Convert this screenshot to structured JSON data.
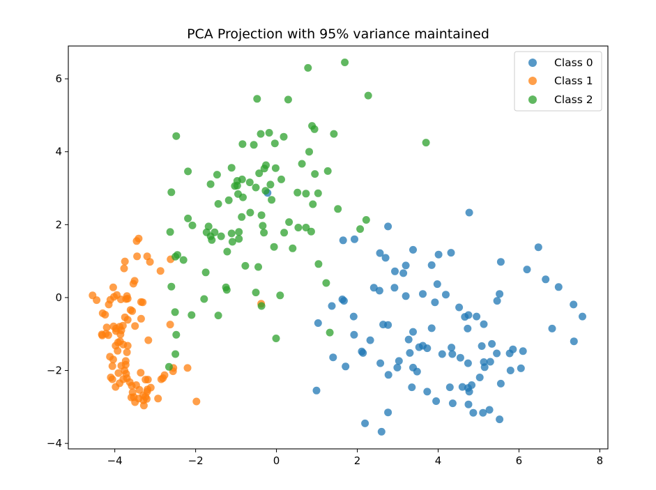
{
  "chart_data": {
    "type": "scatter",
    "title": "PCA Projection with 95% variance maintained",
    "xlabel": "",
    "ylabel": "",
    "xlim": [
      -5.15,
      8.2
    ],
    "ylim": [
      -4.15,
      6.9
    ],
    "xticks": [
      -4,
      -2,
      0,
      2,
      4,
      6,
      8
    ],
    "yticks": [
      -4,
      -2,
      0,
      2,
      4,
      6
    ],
    "xtick_labels": [
      "−4",
      "−2",
      "0",
      "2",
      "4",
      "6",
      "8"
    ],
    "ytick_labels": [
      "−4",
      "−2",
      "0",
      "2",
      "4",
      "6"
    ],
    "grid": false,
    "legend_position": "top-right",
    "marker_alpha": 0.75,
    "series": [
      {
        "name": "Class 0",
        "color": "#1f77b4",
        "points": [
          [
            -0.22,
            2.87
          ],
          [
            1.65,
            1.57
          ],
          [
            1.93,
            1.6
          ],
          [
            2.76,
            1.95
          ],
          [
            2.56,
            1.22
          ],
          [
            2.7,
            1.09
          ],
          [
            3.14,
            0.67
          ],
          [
            2.93,
            0.72
          ],
          [
            3.2,
            0.88
          ],
          [
            3.38,
            1.31
          ],
          [
            3.84,
            0.89
          ],
          [
            4.01,
            1.18
          ],
          [
            4.32,
            1.23
          ],
          [
            4.77,
            2.33
          ],
          [
            5.55,
            0.98
          ],
          [
            6.48,
            1.38
          ],
          [
            6.2,
            0.77
          ],
          [
            6.66,
            0.5
          ],
          [
            6.98,
            0.29
          ],
          [
            7.35,
            -0.19
          ],
          [
            7.57,
            -0.52
          ],
          [
            2.41,
            0.27
          ],
          [
            2.55,
            0.19
          ],
          [
            2.92,
            0.27
          ],
          [
            3.2,
            0.04
          ],
          [
            3.62,
            0.1
          ],
          [
            3.98,
            0.37
          ],
          [
            4.19,
            0.08
          ],
          [
            4.52,
            -0.27
          ],
          [
            4.66,
            -0.53
          ],
          [
            4.75,
            -0.48
          ],
          [
            4.95,
            -0.52
          ],
          [
            5.13,
            -0.73
          ],
          [
            3.92,
            -0.13
          ],
          [
            1.37,
            -0.23
          ],
          [
            1.63,
            -0.05
          ],
          [
            1.67,
            -0.09
          ],
          [
            1.91,
            -0.52
          ],
          [
            2.64,
            -0.74
          ],
          [
            2.76,
            -0.75
          ],
          [
            3.38,
            -0.94
          ],
          [
            3.84,
            -0.84
          ],
          [
            4.73,
            -0.85
          ],
          [
            5.46,
            -0.09
          ],
          [
            5.52,
            0.1
          ],
          [
            6.82,
            -0.85
          ],
          [
            7.36,
            -1.2
          ],
          [
            1.03,
            -0.7
          ],
          [
            1.4,
            -1.64
          ],
          [
            1.71,
            -1.89
          ],
          [
            1.92,
            -1.02
          ],
          [
            2.11,
            -1.48
          ],
          [
            2.14,
            -1.52
          ],
          [
            2.32,
            -1.17
          ],
          [
            2.57,
            -1.8
          ],
          [
            2.77,
            -2.12
          ],
          [
            2.99,
            -1.92
          ],
          [
            3.03,
            -1.74
          ],
          [
            3.27,
            -1.15
          ],
          [
            3.3,
            -1.52
          ],
          [
            3.53,
            -1.36
          ],
          [
            3.62,
            -1.32
          ],
          [
            3.73,
            -1.39
          ],
          [
            4.1,
            -1.55
          ],
          [
            4.33,
            -1.37
          ],
          [
            4.35,
            -1.55
          ],
          [
            4.55,
            -1.65
          ],
          [
            4.74,
            -1.8
          ],
          [
            5.13,
            -1.77
          ],
          [
            5.15,
            -1.91
          ],
          [
            5.29,
            -1.76
          ],
          [
            5.08,
            -1.33
          ],
          [
            5.33,
            -1.27
          ],
          [
            5.45,
            -1.53
          ],
          [
            5.77,
            -1.53
          ],
          [
            5.85,
            -1.42
          ],
          [
            6.1,
            -1.47
          ],
          [
            3.38,
            -1.92
          ],
          [
            3.48,
            -2.03
          ],
          [
            3.35,
            -2.46
          ],
          [
            3.73,
            -2.58
          ],
          [
            3.95,
            -2.84
          ],
          [
            4.29,
            -2.46
          ],
          [
            4.36,
            -2.9
          ],
          [
            4.6,
            -2.45
          ],
          [
            4.74,
            -2.48
          ],
          [
            4.77,
            -2.58
          ],
          [
            4.83,
            -2.4
          ],
          [
            4.75,
            -2.93
          ],
          [
            4.87,
            -3.16
          ],
          [
            5.03,
            -2.19
          ],
          [
            5.11,
            -3.16
          ],
          [
            5.27,
            -3.08
          ],
          [
            5.52,
            -3.34
          ],
          [
            5.55,
            -2.36
          ],
          [
            5.79,
            -2.0
          ],
          [
            6.05,
            -1.94
          ],
          [
            0.99,
            -2.55
          ],
          [
            2.19,
            -3.45
          ],
          [
            2.6,
            -3.68
          ],
          [
            2.76,
            -3.15
          ]
        ]
      },
      {
        "name": "Class 1",
        "color": "#ff7f0e",
        "points": [
          [
            -3.46,
            1.55
          ],
          [
            -3.41,
            1.62
          ],
          [
            -3.2,
            1.13
          ],
          [
            -3.13,
            0.98
          ],
          [
            -3.45,
            1.13
          ],
          [
            -3.75,
            0.99
          ],
          [
            -3.77,
            0.8
          ],
          [
            -3.54,
            0.38
          ],
          [
            -3.51,
            0.46
          ],
          [
            -2.87,
            0.73
          ],
          [
            -2.62,
            1.05
          ],
          [
            -4.04,
            0.28
          ],
          [
            -3.95,
            0.07
          ],
          [
            -4.02,
            0.02
          ],
          [
            -3.85,
            -0.05
          ],
          [
            -3.7,
            0.04
          ],
          [
            -3.72,
            -0.04
          ],
          [
            -4.11,
            -0.06
          ],
          [
            -4.15,
            -0.19
          ],
          [
            -4.55,
            0.06
          ],
          [
            -4.45,
            -0.07
          ],
          [
            -4.3,
            -0.43
          ],
          [
            -4.24,
            -0.47
          ],
          [
            -3.68,
            -0.03
          ],
          [
            -3.61,
            -0.34
          ],
          [
            -3.35,
            -0.12
          ],
          [
            -3.31,
            -0.13
          ],
          [
            -3.57,
            -0.37
          ],
          [
            -3.75,
            -0.54
          ],
          [
            -3.68,
            -0.61
          ],
          [
            -3.5,
            -0.78
          ],
          [
            -3.35,
            -0.58
          ],
          [
            -4.2,
            -0.82
          ],
          [
            -4.03,
            -0.79
          ],
          [
            -3.97,
            -0.85
          ],
          [
            -3.97,
            -0.92
          ],
          [
            -3.88,
            -0.8
          ],
          [
            -3.84,
            -0.9
          ],
          [
            -3.8,
            -0.77
          ],
          [
            -4.22,
            -0.99
          ],
          [
            -4.32,
            -1.01
          ],
          [
            -4.31,
            -1.04
          ],
          [
            -4.16,
            -1.03
          ],
          [
            -3.92,
            -1.23
          ],
          [
            -3.98,
            -1.32
          ],
          [
            -3.79,
            -1.29
          ],
          [
            -3.68,
            -1.32
          ],
          [
            -3.86,
            -1.01
          ],
          [
            -3.87,
            -1.2
          ],
          [
            -3.17,
            -1.17
          ],
          [
            -3.93,
            -1.46
          ],
          [
            -3.7,
            -1.5
          ],
          [
            -4.12,
            -1.62
          ],
          [
            -4.04,
            -1.7
          ],
          [
            -4.06,
            -1.88
          ],
          [
            -3.84,
            -1.87
          ],
          [
            -3.73,
            -1.74
          ],
          [
            -3.73,
            -1.84
          ],
          [
            -3.72,
            -2.09
          ],
          [
            -3.91,
            -2.07
          ],
          [
            -4.1,
            -2.19
          ],
          [
            -4.06,
            -2.24
          ],
          [
            -3.88,
            -2.35
          ],
          [
            -3.98,
            -2.45
          ],
          [
            -3.79,
            -2.24
          ],
          [
            -3.63,
            -2.32
          ],
          [
            -3.58,
            -2.42
          ],
          [
            -3.47,
            -2.4
          ],
          [
            -3.36,
            -2.06
          ],
          [
            -3.39,
            -2.53
          ],
          [
            -3.59,
            -2.74
          ],
          [
            -3.53,
            -2.73
          ],
          [
            -3.5,
            -2.87
          ],
          [
            -3.41,
            -2.77
          ],
          [
            -3.3,
            -2.68
          ],
          [
            -3.29,
            -2.82
          ],
          [
            -3.28,
            -2.96
          ],
          [
            -3.21,
            -2.78
          ],
          [
            -3.2,
            -2.58
          ],
          [
            -3.19,
            -2.52
          ],
          [
            -3.24,
            -2.72
          ],
          [
            -3.18,
            -2.25
          ],
          [
            -3.11,
            -2.47
          ],
          [
            -3.24,
            -2.25
          ],
          [
            -2.85,
            -2.24
          ],
          [
            -2.81,
            -2.21
          ],
          [
            -2.93,
            -2.77
          ],
          [
            -2.77,
            -2.13
          ],
          [
            -2.55,
            -1.93
          ],
          [
            -2.56,
            -2.02
          ],
          [
            -3.56,
            -2.6
          ],
          [
            -2.2,
            -1.93
          ],
          [
            -1.98,
            -2.85
          ],
          [
            -3.7,
            -2.21
          ],
          [
            -3.76,
            -2.0
          ],
          [
            -0.38,
            -0.17
          ],
          [
            -2.63,
            -0.74
          ]
        ]
      },
      {
        "name": "Class 2",
        "color": "#2ca02c",
        "points": [
          [
            0.78,
            6.3
          ],
          [
            1.69,
            6.45
          ],
          [
            -0.48,
            5.45
          ],
          [
            0.29,
            5.43
          ],
          [
            2.27,
            5.54
          ],
          [
            0.88,
            4.71
          ],
          [
            0.94,
            4.62
          ],
          [
            1.42,
            4.49
          ],
          [
            -0.39,
            4.49
          ],
          [
            -0.18,
            4.52
          ],
          [
            0.18,
            4.41
          ],
          [
            -2.48,
            4.43
          ],
          [
            3.7,
            4.25
          ],
          [
            -0.84,
            4.21
          ],
          [
            -0.56,
            4.19
          ],
          [
            0.81,
            4.0
          ],
          [
            -0.04,
            4.23
          ],
          [
            -2.19,
            3.46
          ],
          [
            0.63,
            3.67
          ],
          [
            -1.11,
            3.56
          ],
          [
            -0.26,
            3.63
          ],
          [
            -0.3,
            3.54
          ],
          [
            -0.43,
            3.41
          ],
          [
            -0.02,
            3.55
          ],
          [
            -1.47,
            3.37
          ],
          [
            -0.85,
            3.24
          ],
          [
            -0.97,
            3.2
          ],
          [
            -1.03,
            3.06
          ],
          [
            -0.97,
            3.07
          ],
          [
            -0.66,
            3.16
          ],
          [
            -1.63,
            3.11
          ],
          [
            0.12,
            3.24
          ],
          [
            0.95,
            3.39
          ],
          [
            1.27,
            3.47
          ],
          [
            -2.6,
            2.89
          ],
          [
            -0.95,
            2.84
          ],
          [
            -0.83,
            2.75
          ],
          [
            -1.18,
            2.67
          ],
          [
            -1.44,
            2.57
          ],
          [
            -0.51,
            3.02
          ],
          [
            -0.27,
            2.93
          ],
          [
            -0.15,
            3.1
          ],
          [
            -0.12,
            2.68
          ],
          [
            0.52,
            2.88
          ],
          [
            0.73,
            2.85
          ],
          [
            1.03,
            2.86
          ],
          [
            0.9,
            2.56
          ],
          [
            1.52,
            2.43
          ],
          [
            -0.65,
            2.33
          ],
          [
            -0.86,
            2.21
          ],
          [
            -0.37,
            2.26
          ],
          [
            -2.19,
            2.17
          ],
          [
            -2.08,
            1.98
          ],
          [
            -1.68,
            1.95
          ],
          [
            -1.73,
            1.79
          ],
          [
            -1.53,
            1.79
          ],
          [
            -1.63,
            1.68
          ],
          [
            -1.6,
            1.58
          ],
          [
            -1.37,
            1.68
          ],
          [
            -1.11,
            1.76
          ],
          [
            -1.09,
            1.53
          ],
          [
            -0.93,
            1.8
          ],
          [
            -0.93,
            1.61
          ],
          [
            -0.34,
            1.97
          ],
          [
            -0.31,
            1.78
          ],
          [
            0.19,
            1.78
          ],
          [
            0.31,
            2.07
          ],
          [
            0.54,
            1.92
          ],
          [
            0.73,
            1.92
          ],
          [
            0.86,
            1.81
          ],
          [
            2.22,
            2.13
          ],
          [
            2.07,
            1.88
          ],
          [
            -2.63,
            1.8
          ],
          [
            -2.5,
            1.12
          ],
          [
            -2.45,
            1.17
          ],
          [
            -2.3,
            1.03
          ],
          [
            -1.22,
            1.26
          ],
          [
            -0.06,
            1.39
          ],
          [
            0.4,
            1.35
          ],
          [
            -0.77,
            0.87
          ],
          [
            -0.45,
            0.84
          ],
          [
            1.04,
            0.92
          ],
          [
            -1.75,
            0.69
          ],
          [
            1.23,
            0.4
          ],
          [
            -1.25,
            0.28
          ],
          [
            -1.23,
            0.21
          ],
          [
            -2.6,
            0.3
          ],
          [
            -0.51,
            0.14
          ],
          [
            -0.37,
            -0.23
          ],
          [
            0.09,
            0.06
          ],
          [
            -1.79,
            -0.04
          ],
          [
            -1.44,
            -0.49
          ],
          [
            -2.1,
            -0.48
          ],
          [
            -2.51,
            -0.4
          ],
          [
            -2.48,
            -1.02
          ],
          [
            1.32,
            -0.96
          ],
          [
            -0.01,
            -1.12
          ],
          [
            -2.5,
            -1.55
          ],
          [
            -2.66,
            -1.9
          ]
        ]
      }
    ]
  }
}
